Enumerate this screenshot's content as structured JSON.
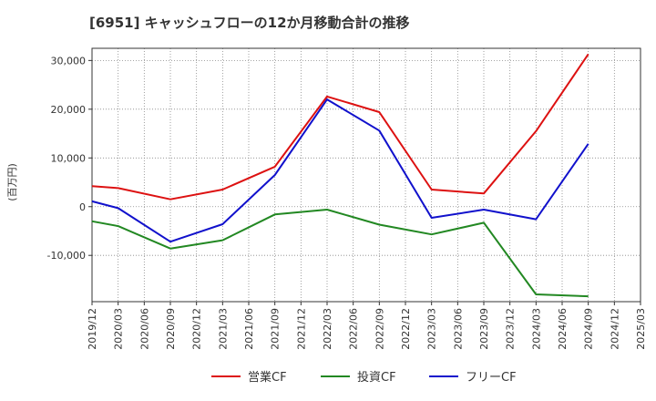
{
  "chart_data": {
    "type": "line",
    "title": "[6951]  キャッシュフローの12か月移動合計の推移",
    "ylabel": "(百万円)",
    "xlabel": "",
    "ylim": [
      -19500,
      32500
    ],
    "yticks": [
      30000,
      20000,
      10000,
      0,
      -10000
    ],
    "ytick_labels": [
      "30,000",
      "20,000",
      "10,000",
      "0",
      "-10,000"
    ],
    "x_labels": [
      "2019/12",
      "2020/03",
      "2020/06",
      "2020/09",
      "2020/12",
      "2021/03",
      "2021/06",
      "2021/09",
      "2021/12",
      "2022/03",
      "2022/06",
      "2022/09",
      "2022/12",
      "2023/03",
      "2023/06",
      "2023/09",
      "2023/12",
      "2024/03",
      "2024/06",
      "2024/09",
      "2024/12",
      "2025/03"
    ],
    "grid": true,
    "legend_position": "bottom",
    "series": [
      {
        "name": "営業CF",
        "color": "#dd1111",
        "points": [
          {
            "x": "2019/12",
            "y": 4200
          },
          {
            "x": "2020/03",
            "y": 3800
          },
          {
            "x": "2020/09",
            "y": 1500
          },
          {
            "x": "2021/03",
            "y": 3500
          },
          {
            "x": "2021/09",
            "y": 8200
          },
          {
            "x": "2022/03",
            "y": 22600
          },
          {
            "x": "2022/09",
            "y": 19400
          },
          {
            "x": "2023/03",
            "y": 3500
          },
          {
            "x": "2023/09",
            "y": 2700
          },
          {
            "x": "2024/03",
            "y": 15500
          },
          {
            "x": "2024/09",
            "y": 31300
          }
        ]
      },
      {
        "name": "投資CF",
        "color": "#228822",
        "points": [
          {
            "x": "2019/12",
            "y": -3000
          },
          {
            "x": "2020/03",
            "y": -4000
          },
          {
            "x": "2020/09",
            "y": -8600
          },
          {
            "x": "2021/03",
            "y": -6900
          },
          {
            "x": "2021/09",
            "y": -1600
          },
          {
            "x": "2022/03",
            "y": -600
          },
          {
            "x": "2022/09",
            "y": -3700
          },
          {
            "x": "2023/03",
            "y": -5700
          },
          {
            "x": "2023/09",
            "y": -3300
          },
          {
            "x": "2024/03",
            "y": -18000
          },
          {
            "x": "2024/09",
            "y": -18400
          }
        ]
      },
      {
        "name": "フリーCF",
        "color": "#1111cc",
        "points": [
          {
            "x": "2019/12",
            "y": 1100
          },
          {
            "x": "2020/03",
            "y": -300
          },
          {
            "x": "2020/09",
            "y": -7200
          },
          {
            "x": "2021/03",
            "y": -3600
          },
          {
            "x": "2021/09",
            "y": 6500
          },
          {
            "x": "2022/03",
            "y": 22000
          },
          {
            "x": "2022/09",
            "y": 15600
          },
          {
            "x": "2023/03",
            "y": -2300
          },
          {
            "x": "2023/09",
            "y": -600
          },
          {
            "x": "2024/03",
            "y": -2600
          },
          {
            "x": "2024/09",
            "y": 12900
          }
        ]
      }
    ]
  }
}
